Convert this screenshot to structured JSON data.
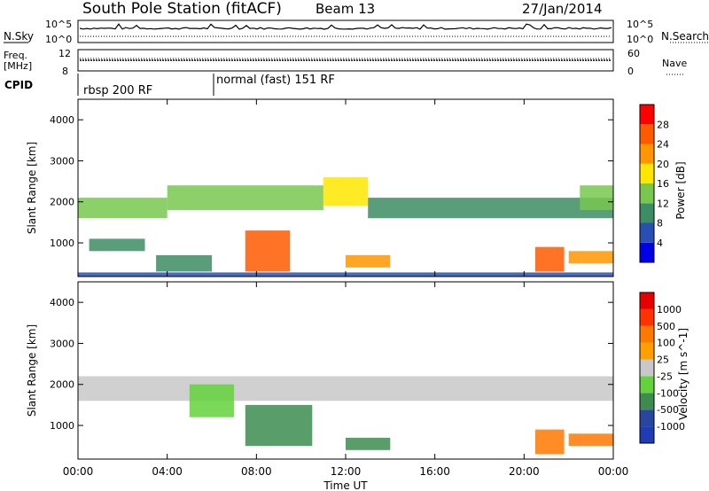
{
  "header": {
    "station": "South Pole Station (fitACF)",
    "beam": "Beam 13",
    "date": "27/Jan/2014"
  },
  "noise_panel": {
    "left_label": "N.Sky",
    "right_label": "N.Search",
    "left_ticks": [
      "10^5",
      "10^0"
    ],
    "right_ticks": [
      "10^5",
      "10^0"
    ]
  },
  "freq_panel": {
    "left_label_1": "Freq.",
    "left_label_2": "[MHz]",
    "left_ticks": [
      "12",
      "8"
    ],
    "right_label": "Nave",
    "right_ticks": [
      "60",
      "0"
    ]
  },
  "cpid_panel": {
    "label": "CPID",
    "segments": [
      {
        "text": "rbsp 200 RF",
        "start_hour": 0
      },
      {
        "text": "normal (fast) 151 RF",
        "start_hour": 6
      }
    ]
  },
  "chart_data": [
    {
      "type": "heatmap",
      "name": "power",
      "ylabel": "Slant Range [km]",
      "xlabel": "Time UT",
      "x_ticks": [
        "00:00",
        "04:00",
        "08:00",
        "12:00",
        "16:00",
        "20:00",
        "00:00"
      ],
      "x_tick_hours": [
        0,
        4,
        8,
        12,
        16,
        20,
        24
      ],
      "ylim": [
        180,
        4500
      ],
      "y_ticks": [
        1000,
        2000,
        3000,
        4000
      ],
      "colorbar": {
        "label": "Power [dB]",
        "ticks": [
          "28",
          "24",
          "20",
          "16",
          "12",
          "8",
          "4"
        ],
        "colors": [
          "#0000e6",
          "#2850b4",
          "#3c8c64",
          "#78c850",
          "#ffe600",
          "#ff9600",
          "#ff5a00",
          "#ff0000"
        ]
      },
      "bands": [
        {
          "t0": 0.0,
          "t1": 4.0,
          "r0": 1600,
          "r1": 2100,
          "level": 3
        },
        {
          "t0": 4.0,
          "t1": 11.0,
          "r0": 1800,
          "r1": 2400,
          "level": 3
        },
        {
          "t0": 11.0,
          "t1": 13.0,
          "r0": 1900,
          "r1": 2600,
          "level": 4
        },
        {
          "t0": 13.0,
          "t1": 24.0,
          "r0": 1600,
          "r1": 2100,
          "level": 2
        },
        {
          "t0": 22.5,
          "t1": 24.0,
          "r0": 1800,
          "r1": 2400,
          "level": 3
        },
        {
          "t0": 7.5,
          "t1": 9.5,
          "r0": 300,
          "r1": 1300,
          "level": 6
        },
        {
          "t0": 12.0,
          "t1": 14.0,
          "r0": 400,
          "r1": 700,
          "level": 5
        },
        {
          "t0": 20.5,
          "t1": 21.8,
          "r0": 300,
          "r1": 900,
          "level": 6
        },
        {
          "t0": 22.0,
          "t1": 24.0,
          "r0": 500,
          "r1": 800,
          "level": 5
        },
        {
          "t0": 0.5,
          "t1": 3.0,
          "r0": 800,
          "r1": 1100,
          "level": 2
        },
        {
          "t0": 3.5,
          "t1": 6.0,
          "r0": 300,
          "r1": 700,
          "level": 2
        },
        {
          "t0": 0.0,
          "t1": 24.0,
          "r0": 180,
          "r1": 280,
          "level": 1
        }
      ]
    },
    {
      "type": "heatmap",
      "name": "velocity",
      "ylabel": "Slant Range [km]",
      "xlabel": "Time UT",
      "x_ticks": [
        "00:00",
        "04:00",
        "08:00",
        "12:00",
        "16:00",
        "20:00",
        "00:00"
      ],
      "x_tick_hours": [
        0,
        4,
        8,
        12,
        16,
        20,
        24
      ],
      "ylim": [
        180,
        4500
      ],
      "y_ticks": [
        1000,
        2000,
        3000,
        4000
      ],
      "colorbar": {
        "label": "Velocity [m s^-1]",
        "ticks": [
          "1000",
          "500",
          "100",
          "25",
          "-25",
          "-100",
          "-500",
          "-1000"
        ],
        "colors": [
          "#1e3cb4",
          "#2846a0",
          "#3c8c50",
          "#64d23c",
          "#c8c8c8",
          "#ffa000",
          "#ff7800",
          "#ff3200",
          "#e60000"
        ]
      },
      "bands": [
        {
          "t0": 0.0,
          "t1": 24.0,
          "r0": 1600,
          "r1": 2200,
          "level": 4
        },
        {
          "t0": 7.5,
          "t1": 10.5,
          "r0": 500,
          "r1": 1500,
          "level": 2
        },
        {
          "t0": 12.0,
          "t1": 14.0,
          "r0": 400,
          "r1": 700,
          "level": 2
        },
        {
          "t0": 20.5,
          "t1": 21.8,
          "r0": 300,
          "r1": 900,
          "level": 6
        },
        {
          "t0": 22.0,
          "t1": 24.0,
          "r0": 500,
          "r1": 800,
          "level": 6
        },
        {
          "t0": 5.0,
          "t1": 7.0,
          "r0": 1200,
          "r1": 2000,
          "level": 3
        }
      ]
    }
  ],
  "x_axis_title": "Time UT"
}
